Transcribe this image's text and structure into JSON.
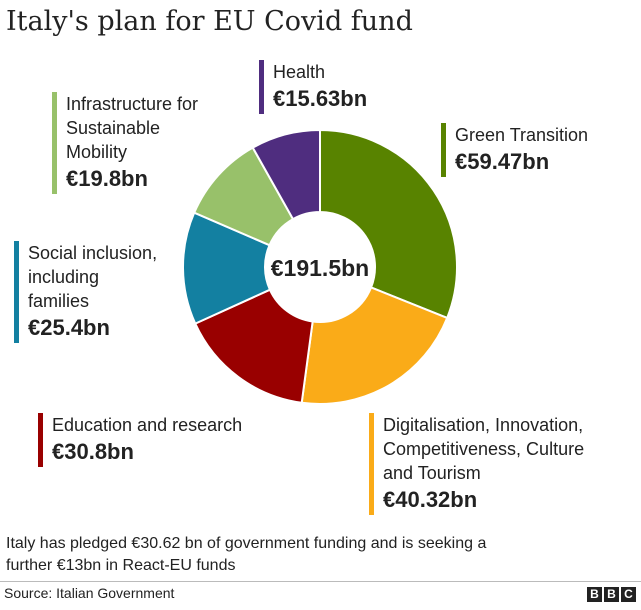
{
  "title": "Italy's plan for EU Covid fund",
  "chart_data": {
    "type": "pie",
    "variant": "donut",
    "center_label": "€191.5bn",
    "total": 191.5,
    "unit": "€bn",
    "slices": [
      {
        "label": "Green Transition",
        "value": 59.47,
        "value_label": "€59.47bn",
        "color": "#588300"
      },
      {
        "label": "Digitalisation, Innovation, Competitiveness, Culture and Tourism",
        "value": 40.32,
        "value_label": "€40.32bn",
        "color": "#FAAB18"
      },
      {
        "label": "Education and research",
        "value": 30.8,
        "value_label": "€30.8bn",
        "color": "#990000"
      },
      {
        "label": "Social inclusion, including families",
        "value": 25.4,
        "value_label": "€25.4bn",
        "color": "#1380A1"
      },
      {
        "label": "Infrastructure for Sustainable Mobility",
        "value": 19.8,
        "value_label": "€19.8bn",
        "color": "#98C16A"
      },
      {
        "label": "Health",
        "value": 15.63,
        "value_label": "€15.63bn",
        "color": "#4F2D7F"
      }
    ]
  },
  "labels": {
    "health": {
      "line1": "Health"
    },
    "green": {
      "line1": "Green Transition"
    },
    "infra": {
      "line1": "Infrastructure for",
      "line2": "Sustainable",
      "line3": "Mobility"
    },
    "social": {
      "line1": "Social inclusion,",
      "line2": "including",
      "line3": "families"
    },
    "education": {
      "line1": "Education and research"
    },
    "digital": {
      "line1": "Digitalisation, Innovation,",
      "line2": "Competitiveness, Culture",
      "line3": "and Tourism"
    }
  },
  "footnote": {
    "line1": "Italy has pledged €30.62 bn of government funding and is seeking a",
    "line2": "further €13bn in React-EU funds"
  },
  "source": "Source: Italian Government",
  "logo": {
    "letters": [
      "B",
      "B",
      "C"
    ]
  }
}
